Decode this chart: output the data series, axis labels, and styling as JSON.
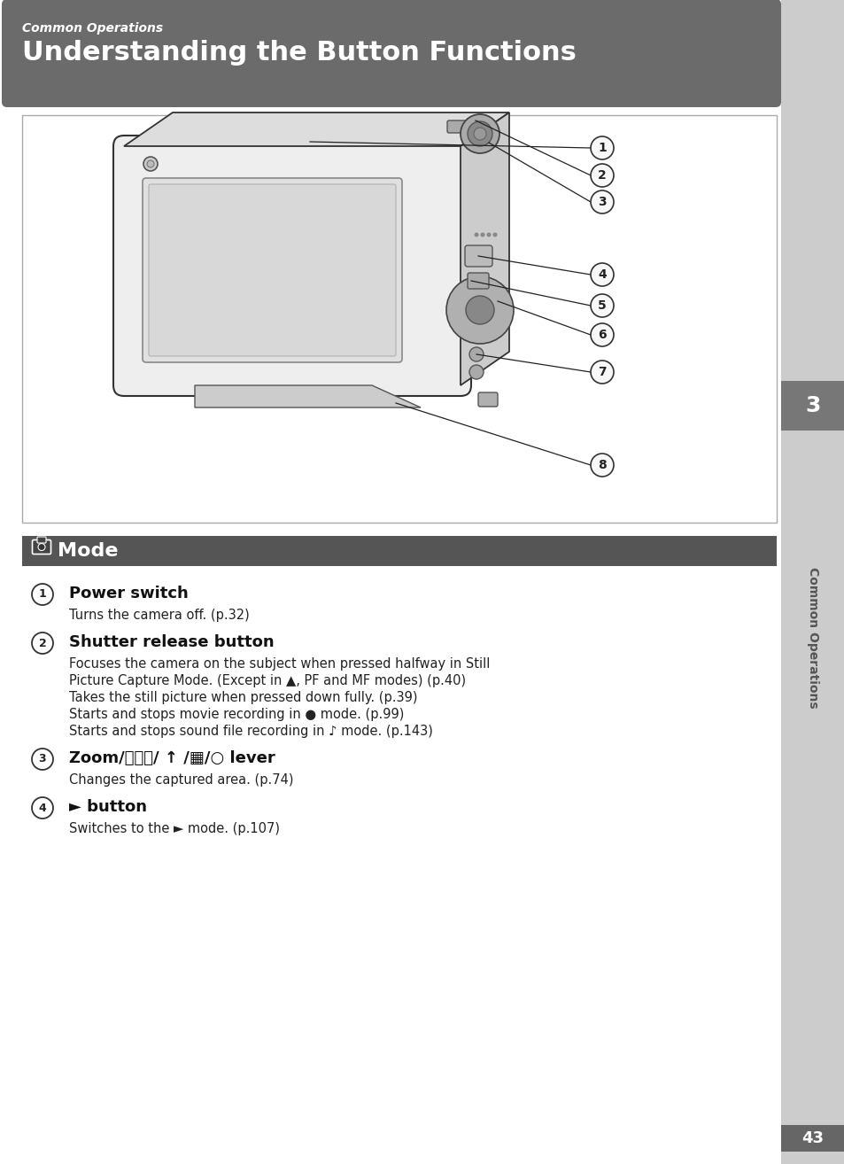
{
  "header_bg": "#6b6b6b",
  "header_subtitle": "Common Operations",
  "header_title": "Understanding the Button Functions",
  "header_title_color": "#ffffff",
  "header_subtitle_color": "#ffffff",
  "mode_bar_bg": "#555555",
  "mode_bar_text_color": "#ffffff",
  "sidebar_bg": "#cccccc",
  "sidebar_text": "Common Operations",
  "sidebar_number": "3",
  "sidebar_num_bg": "#777777",
  "sidebar_text_color": "#555555",
  "page_bg": "#ffffff",
  "diagram_border": "#aaaaaa",
  "diagram_bg": "#ffffff",
  "footer_page": "43",
  "footer_bg": "#666666",
  "body_items": [
    {
      "num": "1",
      "title": "Power switch",
      "lines": [
        {
          "text": "Turns the camera off. (p.32)",
          "bold_parts": []
        }
      ]
    },
    {
      "num": "2",
      "title": "Shutter release button",
      "lines": [
        {
          "text": "Focuses the camera on the subject when pressed halfway in Still",
          "bold_parts": []
        },
        {
          "text": "Picture Capture Mode. (Except in ▲, PF and MF modes) (p.40)",
          "bold_parts": [
            "PF",
            "MF"
          ]
        },
        {
          "text": "Takes the still picture when pressed down fully. (p.39)",
          "bold_parts": []
        },
        {
          "text": "Starts and stops movie recording in ● mode. (p.99)",
          "bold_parts": [
            "mode."
          ]
        },
        {
          "text": "Starts and stops sound file recording in ♪ mode. (p.143)",
          "bold_parts": [
            "mode."
          ]
        }
      ]
    },
    {
      "num": "3",
      "title": "Zoom/⛰⛰⛰/ ↑ /▦/○ lever",
      "lines": [
        {
          "text": "Changes the captured area. (p.74)",
          "bold_parts": []
        }
      ]
    },
    {
      "num": "4",
      "title": "► button",
      "lines": [
        {
          "text": "Switches to the ► mode. (p.107)",
          "bold_parts": []
        }
      ]
    }
  ]
}
